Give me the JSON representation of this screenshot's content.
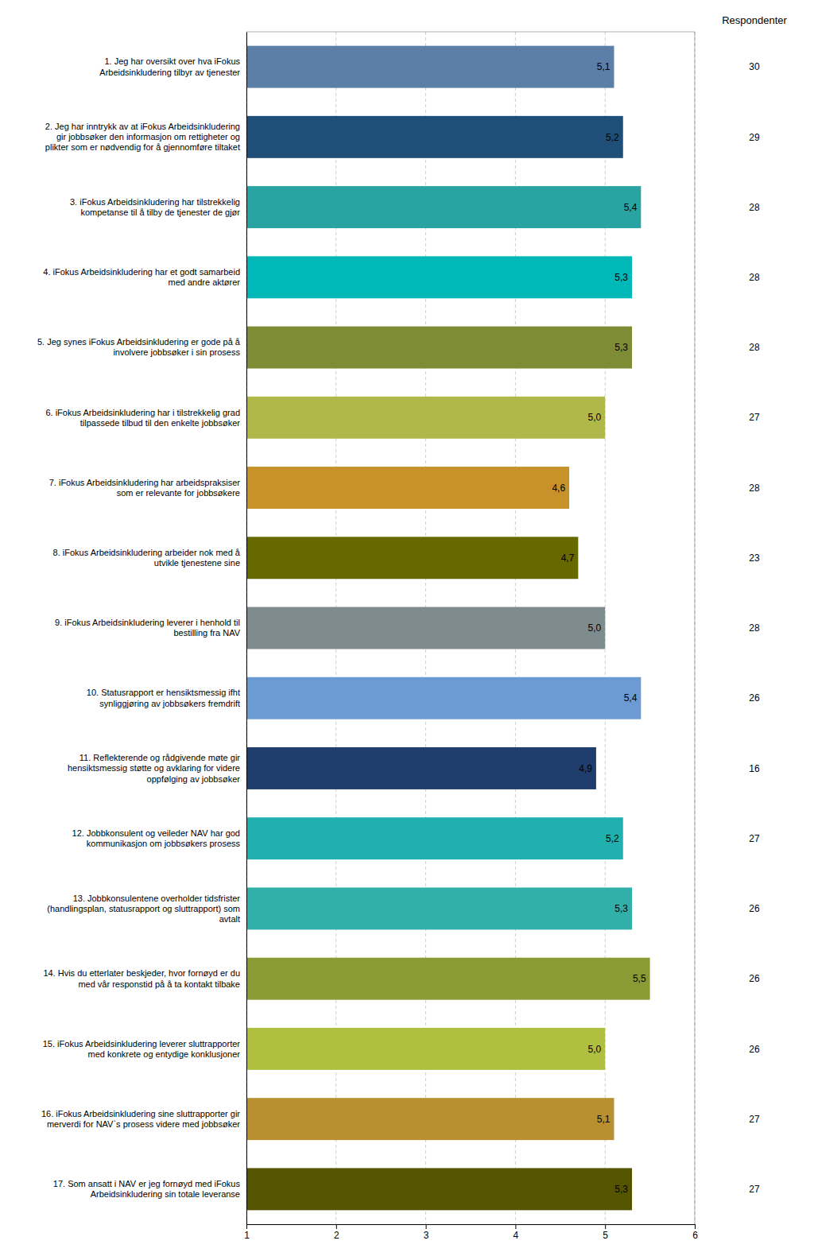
{
  "chart_data": {
    "type": "bar",
    "orientation": "horizontal",
    "categories": [
      "1. Jeg har oversikt over hva iFokus\nArbeidsinkludering tilbyr av tjenester",
      "2. Jeg har inntrykk av at iFokus Arbeidsinkludering\ngir jobbsøker den informasjon om rettigheter og\nplikter som er nødvendig for å gjennomføre tiltaket",
      "3. iFokus Arbeidsinkludering har tilstrekkelig\nkompetanse til å tilby de tjenester de gjør",
      "4. iFokus Arbeidsinkludering har et godt samarbeid\nmed andre aktører",
      "5. Jeg synes iFokus Arbeidsinkludering er gode på å\ninvolvere jobbsøker i sin prosess",
      "6. iFokus Arbeidsinkludering har i tilstrekkelig grad\ntilpassede tilbud til den enkelte jobbsøker",
      "7. iFokus Arbeidsinkludering har arbeidspraksiser\nsom er relevante for jobbsøkere",
      "8. iFokus Arbeidsinkludering arbeider nok med å\nutvikle tjenestene sine",
      "9. iFokus Arbeidsinkludering leverer i henhold til\nbestilling fra NAV",
      "10. Statusrapport er hensiktsmessig ifht\nsynliggjøring av jobbsøkers fremdrift",
      "11. Reflekterende og rådgivende møte gir\nhensiktsmessig støtte og avklaring for videre\noppfølging av jobbsøker",
      "12. Jobbkonsulent og veileder NAV har god\nkommunikasjon om jobbsøkers prosess",
      "13. Jobbkonsulentene overholder tidsfrister\n(handlingsplan, statusrapport og sluttrapport) som\navtalt",
      "14. Hvis du etterlater beskjeder, hvor fornøyd er du\nmed vår responstid på å ta kontakt tilbake",
      "15. iFokus Arbeidsinkludering leverer sluttrapporter\nmed konkrete og entydige konklusjoner",
      "16. iFokus Arbeidsinkludering sine sluttrapporter gir\nmerverdi for NAV`s prosess videre med jobbsøker",
      "17. Som ansatt i NAV er jeg fornøyd med iFokus\nArbeidsinkludering sin totale leveranse"
    ],
    "values": [
      5.1,
      5.2,
      5.4,
      5.3,
      5.3,
      5.0,
      4.6,
      4.7,
      5.0,
      5.4,
      4.9,
      5.2,
      5.3,
      5.5,
      5.0,
      5.1,
      5.3
    ],
    "value_labels": [
      "5,1",
      "5,2",
      "5,4",
      "5,3",
      "5,3",
      "5,0",
      "4,6",
      "4,7",
      "5,0",
      "5,4",
      "4,9",
      "5,2",
      "5,3",
      "5,5",
      "5,0",
      "5,1",
      "5,3"
    ],
    "data_labels": true,
    "colors": [
      "#5b7fa6",
      "#1f4e79",
      "#2aa3a3",
      "#00b8b8",
      "#7d8c35",
      "#b0b84a",
      "#c8922a",
      "#686800",
      "#7f8c8d",
      "#6b9bd2",
      "#1f3e6e",
      "#20b0b0",
      "#30b0a8",
      "#8a9b35",
      "#afc040",
      "#b89030",
      "#555500"
    ],
    "respondents": {
      "title": "Respondenter",
      "values": [
        30,
        29,
        28,
        28,
        28,
        27,
        28,
        23,
        28,
        26,
        16,
        27,
        26,
        26,
        26,
        27,
        27
      ]
    },
    "xlim": [
      1,
      6
    ],
    "xticks": [
      1,
      2,
      3,
      4,
      5,
      6
    ],
    "grid": true
  }
}
